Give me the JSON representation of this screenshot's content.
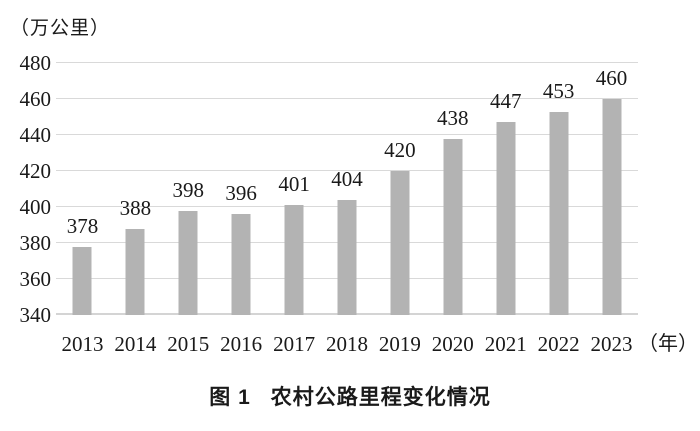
{
  "unit_label": "（万公里）",
  "x_axis_suffix": "（年）",
  "caption": {
    "figure_label": "图 1",
    "text": "农村公路里程变化情况"
  },
  "colors": {
    "bar": "#b3b3b3",
    "gridline": "#d9d9d9",
    "baseline": "#d4d4d4",
    "text": "#1a1a1a",
    "background": "#ffffff"
  },
  "chart_data": {
    "type": "bar",
    "title": "图 1 农村公路里程变化情况",
    "ylabel": "万公里",
    "xlabel": "年",
    "categories": [
      "2013",
      "2014",
      "2015",
      "2016",
      "2017",
      "2018",
      "2019",
      "2020",
      "2021",
      "2022",
      "2023"
    ],
    "values": [
      378,
      388,
      398,
      396,
      401,
      404,
      420,
      438,
      447,
      453,
      460
    ],
    "yticks": [
      340,
      360,
      380,
      400,
      420,
      440,
      460,
      480
    ],
    "ylim": [
      340,
      480
    ],
    "grid": true,
    "legend": false,
    "data_labels": true
  }
}
